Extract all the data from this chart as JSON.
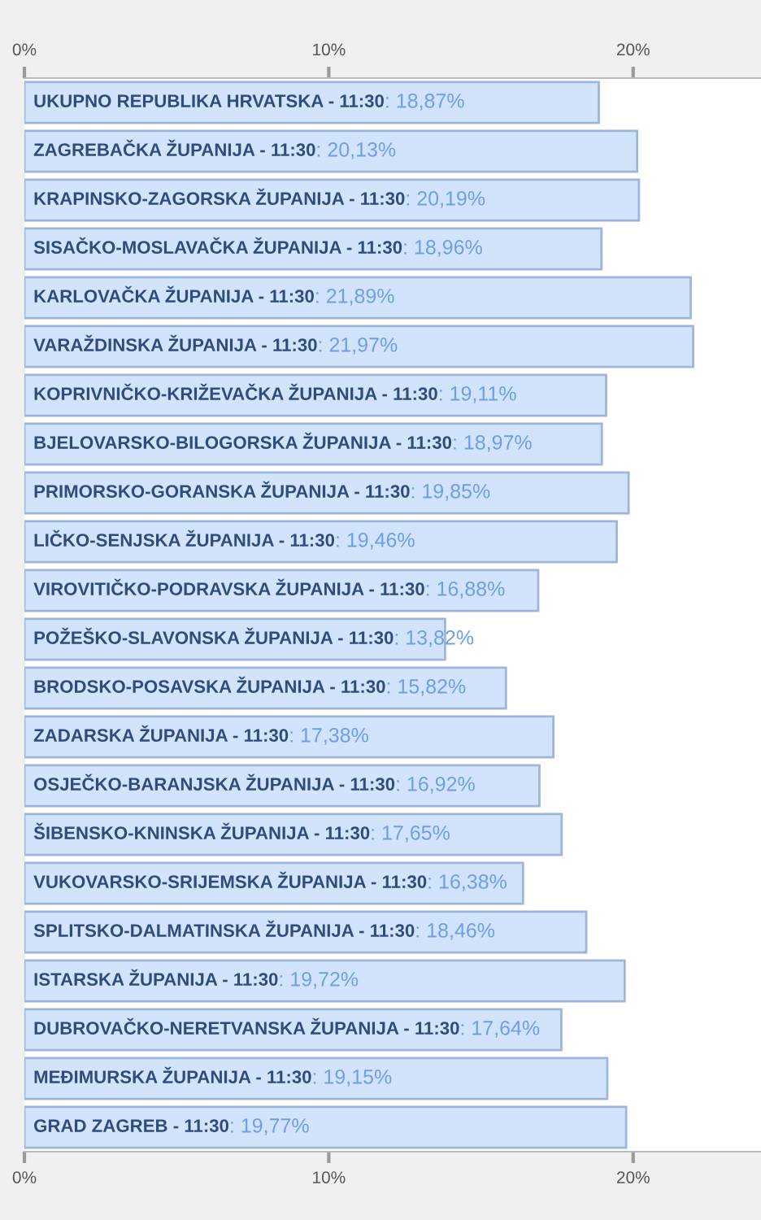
{
  "chart_data": {
    "type": "bar",
    "orientation": "horizontal",
    "categories": [
      "UKUPNO REPUBLIKA HRVATSKA - 11:30",
      "ZAGREBAČKA ŽUPANIJA - 11:30",
      "KRAPINSKO-ZAGORSKA ŽUPANIJA - 11:30",
      "SISAČKO-MOSLAVAČKA ŽUPANIJA - 11:30",
      "KARLOVAČKA ŽUPANIJA - 11:30",
      "VARAŽDINSKA ŽUPANIJA - 11:30",
      "KOPRIVNIČKO-KRIŽEVAČKA ŽUPANIJA - 11:30",
      "BJELOVARSKO-BILOGORSKA ŽUPANIJA - 11:30",
      "PRIMORSKO-GORANSKA ŽUPANIJA - 11:30",
      "LIČKO-SENJSKA ŽUPANIJA - 11:30",
      "VIROVITIČKO-PODRAVSKA ŽUPANIJA - 11:30",
      "POŽEŠKO-SLAVONSKA ŽUPANIJA - 11:30",
      "BRODSKO-POSAVSKA ŽUPANIJA - 11:30",
      "ZADARSKA ŽUPANIJA - 11:30",
      "OSJEČKO-BARANJSKA ŽUPANIJA - 11:30",
      "ŠIBENSKO-KNINSKA ŽUPANIJA - 11:30",
      "VUKOVARSKO-SRIJEMSKA ŽUPANIJA - 11:30",
      "SPLITSKO-DALMATINSKA ŽUPANIJA - 11:30",
      "ISTARSKA ŽUPANIJA - 11:30",
      "DUBROVAČKO-NERETVANSKA ŽUPANIJA - 11:30",
      "MEĐIMURSKA ŽUPANIJA - 11:30",
      "GRAD ZAGREB - 11:30"
    ],
    "values": [
      18.87,
      20.13,
      20.19,
      18.96,
      21.89,
      21.97,
      19.11,
      18.97,
      19.85,
      19.46,
      16.88,
      13.82,
      15.82,
      17.38,
      16.92,
      17.65,
      16.38,
      18.46,
      19.72,
      17.64,
      19.15,
      19.77
    ],
    "value_labels": [
      ": 18,87%",
      ": 20,13%",
      ": 20,19%",
      ": 18,96%",
      ": 21,89%",
      ": 21,97%",
      ": 19,11%",
      ": 18,97%",
      ": 19,85%",
      ": 19,46%",
      ": 16,88%",
      ": 13,82%",
      ": 15,82%",
      ": 17,38%",
      ": 16,92%",
      ": 17,65%",
      ": 16,38%",
      ": 18,46%",
      ": 19,72%",
      ": 17,64%",
      ": 19,15%",
      ": 19,77%"
    ],
    "color": "#d2e3fc",
    "xlim": [
      0,
      24.2
    ],
    "xticks": [
      {
        "value": 0,
        "label": "0%"
      },
      {
        "value": 10,
        "label": "10%"
      },
      {
        "value": 20,
        "label": "20%"
      }
    ],
    "x2lim": [
      0,
      24.2
    ],
    "x2ticks": [
      {
        "value": 0,
        "label": "0%"
      },
      {
        "value": 10,
        "label": "10%"
      },
      {
        "value": 20,
        "label": "20%"
      }
    ],
    "grid": false,
    "legend": false
  }
}
